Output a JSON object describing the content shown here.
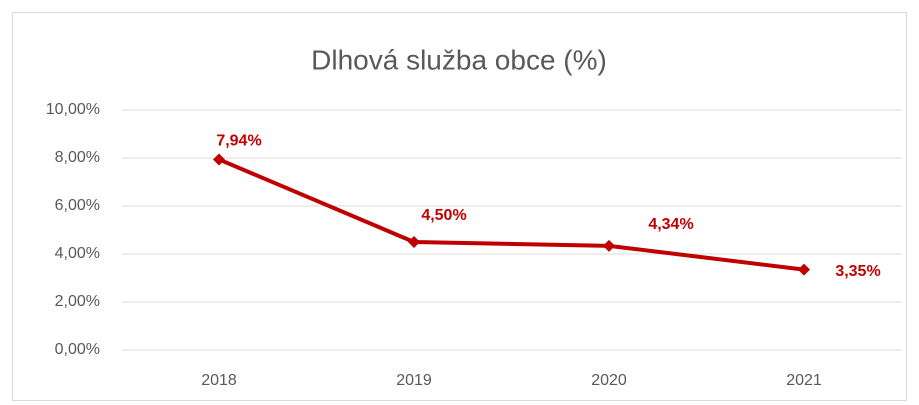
{
  "chart_data": {
    "type": "line",
    "title": "Dlhová služba obce (%)",
    "categories": [
      "2018",
      "2019",
      "2020",
      "2021"
    ],
    "series": [
      {
        "name": "Dlhová služba obce (%)",
        "color": "#c00000",
        "values": [
          7.94,
          4.5,
          4.34,
          3.35
        ],
        "value_labels": [
          "7,94%",
          "4,50%",
          "4,34%",
          "3,35%"
        ]
      }
    ],
    "ylim": [
      0,
      10
    ],
    "yticks": [
      {
        "value": 0,
        "label": "0,00%"
      },
      {
        "value": 2,
        "label": "2,00%"
      },
      {
        "value": 4,
        "label": "4,00%"
      },
      {
        "value": 6,
        "label": "6,00%"
      },
      {
        "value": 8,
        "label": "8,00%"
      },
      {
        "value": 10,
        "label": "10,00%"
      }
    ],
    "grid": true
  }
}
